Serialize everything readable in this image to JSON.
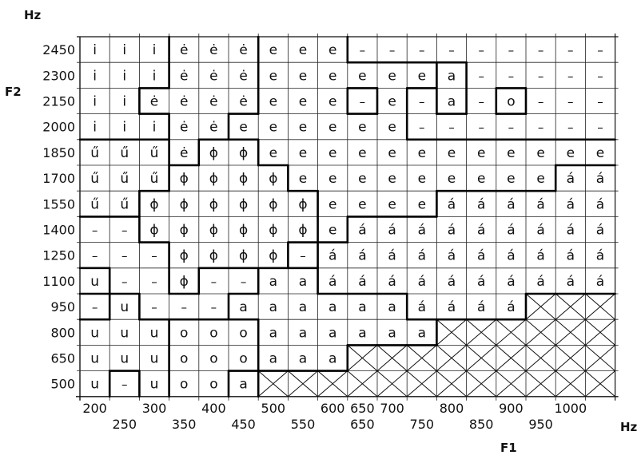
{
  "chart_data": {
    "type": "table",
    "title": "",
    "y_unit_label": "Hz",
    "y_axis_label": "F2",
    "x_unit_label": "Hz",
    "x_axis_label": "F1",
    "f2_values": [
      "2450",
      "2300",
      "2150",
      "2000",
      "1850",
      "1700",
      "1550",
      "1400",
      "1250",
      "1100",
      "950",
      "800",
      "650",
      "500"
    ],
    "f1_upper_labels": [
      "200",
      "300",
      "400",
      "500",
      "600",
      "650",
      "700",
      "800",
      "900",
      "1000"
    ],
    "f1_lower_labels": [
      "250",
      "350",
      "450",
      "550",
      "650",
      "750",
      "850",
      "950"
    ],
    "undefined_symbol": "–",
    "crosshatch_meaning": "no data (region crosshatched)",
    "grid": [
      [
        "i",
        "i",
        "i",
        "ė",
        "ė",
        "ė",
        "e",
        "e",
        "e",
        "–",
        "–",
        "–",
        "–",
        "–",
        "–",
        "–",
        "–",
        "–"
      ],
      [
        "i",
        "i",
        "i",
        "ė",
        "ė",
        "ė",
        "e",
        "e",
        "e",
        "e",
        "e",
        "e",
        "a",
        "–",
        "–",
        "–",
        "–",
        "–"
      ],
      [
        "i",
        "i",
        "ė",
        "ė",
        "ė",
        "ė",
        "e",
        "e",
        "e",
        "–",
        "e",
        "–",
        "a",
        "–",
        "o",
        "–",
        "–",
        "–"
      ],
      [
        "i",
        "i",
        "i",
        "ė",
        "ė",
        "e",
        "e",
        "e",
        "e",
        "e",
        "e",
        "–",
        "–",
        "–",
        "–",
        "–",
        "–",
        "–"
      ],
      [
        "ű",
        "ű",
        "ű",
        "ė",
        "ɸ",
        "ɸ",
        "e",
        "e",
        "e",
        "e",
        "e",
        "e",
        "e",
        "e",
        "e",
        "e",
        "e",
        "e"
      ],
      [
        "ű",
        "ű",
        "ű",
        "ɸ",
        "ɸ",
        "ɸ",
        "ɸ",
        "e",
        "e",
        "e",
        "e",
        "e",
        "e",
        "e",
        "e",
        "e",
        "á",
        "á"
      ],
      [
        "ű",
        "ű",
        "ɸ",
        "ɸ",
        "ɸ",
        "ɸ",
        "ɸ",
        "ɸ",
        "e",
        "e",
        "e",
        "e",
        "á",
        "á",
        "á",
        "á",
        "á",
        "á"
      ],
      [
        "–",
        "–",
        "ɸ",
        "ɸ",
        "ɸ",
        "ɸ",
        "ɸ",
        "ɸ",
        "e",
        "á",
        "á",
        "á",
        "á",
        "á",
        "á",
        "á",
        "á",
        "á"
      ],
      [
        "–",
        "–",
        "–",
        "ɸ",
        "ɸ",
        "ɸ",
        "ɸ",
        "–",
        "á",
        "á",
        "á",
        "á",
        "á",
        "á",
        "á",
        "á",
        "á",
        "á"
      ],
      [
        "u",
        "–",
        "–",
        "ɸ",
        "–",
        "–",
        "a",
        "a",
        "á",
        "á",
        "á",
        "á",
        "á",
        "á",
        "á",
        "á",
        "á",
        "á"
      ],
      [
        "–",
        "u",
        "–",
        "–",
        "–",
        "a",
        "a",
        "a",
        "a",
        "a",
        "a",
        "á",
        "á",
        "á",
        "á",
        "X",
        "X",
        "X"
      ],
      [
        "u",
        "u",
        "u",
        "o",
        "o",
        "o",
        "a",
        "a",
        "a",
        "a",
        "a",
        "a",
        "X",
        "X",
        "X",
        "X",
        "X",
        "X"
      ],
      [
        "u",
        "u",
        "u",
        "o",
        "o",
        "o",
        "a",
        "a",
        "a",
        "X",
        "X",
        "X",
        "X",
        "X",
        "X",
        "X",
        "X",
        "X"
      ],
      [
        "u",
        "–",
        "u",
        "o",
        "o",
        "a",
        "X",
        "X",
        "X",
        "X",
        "X",
        "X",
        "X",
        "X",
        "X",
        "X",
        "X",
        "X"
      ]
    ]
  }
}
